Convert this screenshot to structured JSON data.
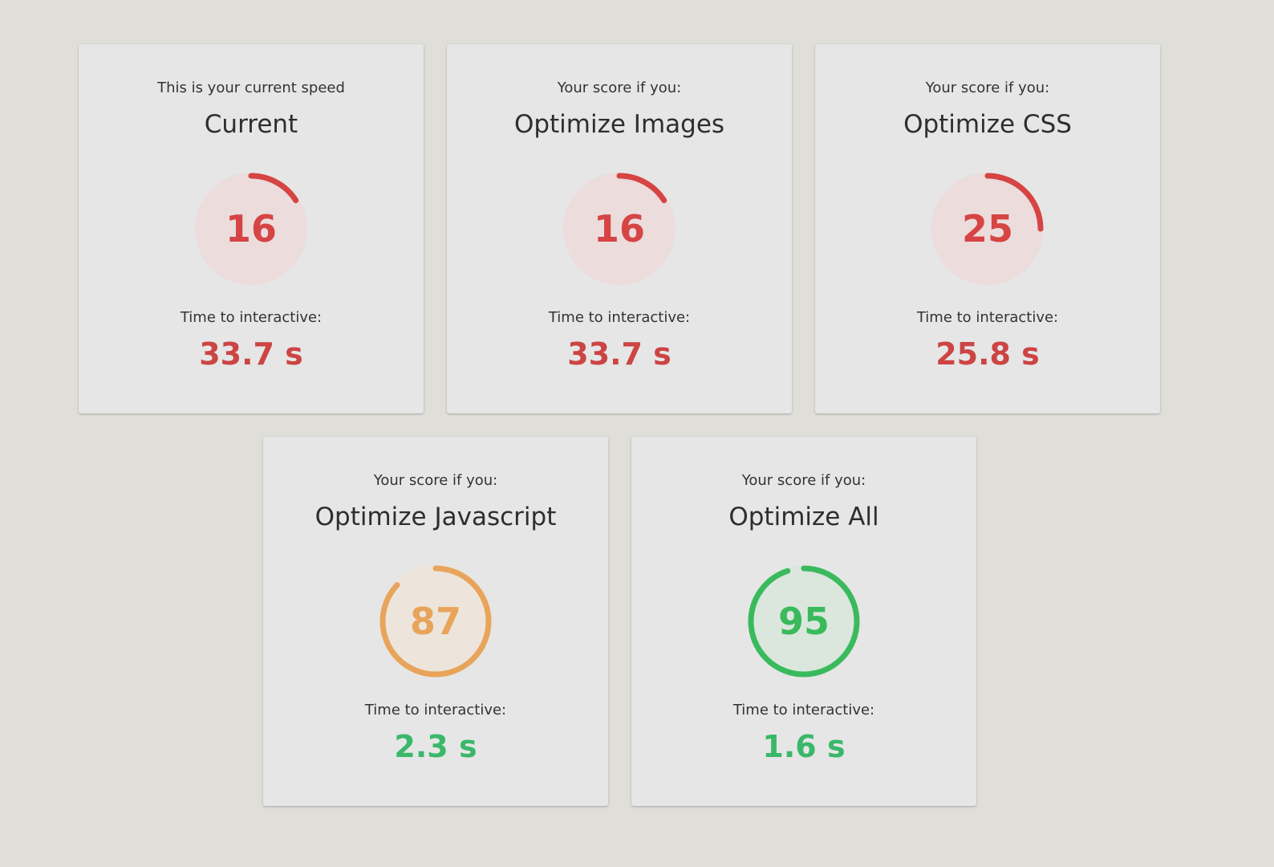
{
  "cards": [
    {
      "subtitle": "This is your current speed",
      "title": "Current",
      "score": "16",
      "score_fraction": 0.16,
      "tti_label": "Time to interactive:",
      "tti_value": "33.7 s",
      "status": "poor"
    },
    {
      "subtitle": "Your score if you:",
      "title": "Optimize Images",
      "score": "16",
      "score_fraction": 0.16,
      "tti_label": "Time to interactive:",
      "tti_value": "33.7 s",
      "status": "poor"
    },
    {
      "subtitle": "Your score if you:",
      "title": "Optimize CSS",
      "score": "25",
      "score_fraction": 0.25,
      "tti_label": "Time to interactive:",
      "tti_value": "25.8 s",
      "status": "poor"
    },
    {
      "subtitle": "Your score if you:",
      "title": "Optimize Javascript",
      "score": "87",
      "score_fraction": 0.87,
      "tti_label": "Time to interactive:",
      "tti_value": "2.3 s",
      "status": "average"
    },
    {
      "subtitle": "Your score if you:",
      "title": "Optimize All",
      "score": "95",
      "score_fraction": 0.95,
      "tti_label": "Time to interactive:",
      "tti_value": "1.6 s",
      "status": "good"
    }
  ],
  "colors": {
    "poor": "#d64444",
    "poor_fill": "#ecdcdc",
    "average": "#e8a45a",
    "average_fill": "#ede5dc",
    "good": "#3aba5c",
    "good_fill": "#dbe7dd",
    "tti_poor": "#cc4444",
    "tti_good": "#3ab86a"
  }
}
